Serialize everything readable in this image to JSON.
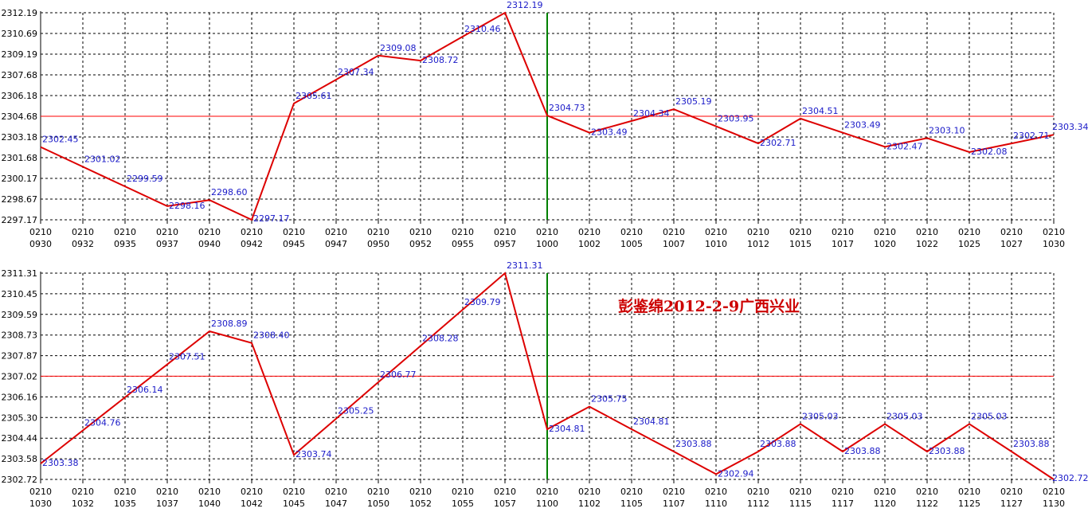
{
  "colors": {
    "line": "#dd0000",
    "reference": "#ff0000",
    "noon_marker": "#008000",
    "data_label": "#1a1ac8",
    "watermark": "#cc0000"
  },
  "watermark_text": "彭鉴绵2012-2-9广西兴业",
  "chart_data": [
    {
      "type": "line",
      "date_label": "0210",
      "categories": [
        "0930",
        "0932",
        "0935",
        "0937",
        "0940",
        "0942",
        "0945",
        "0947",
        "0950",
        "0952",
        "0955",
        "0957",
        "1000",
        "1002",
        "1005",
        "1007",
        "1010",
        "1012",
        "1015",
        "1017",
        "1020",
        "1022",
        "1025",
        "1027",
        "1030"
      ],
      "ytick_labels": [
        "2312.19",
        "2310.69",
        "2309.19",
        "2307.68",
        "2306.18",
        "2304.68",
        "2303.18",
        "2301.68",
        "2300.17",
        "2298.67",
        "2297.17"
      ],
      "ylim": [
        2297.17,
        2312.19
      ],
      "reference_line": 2304.68,
      "vertical_marker_category": "1000",
      "series": [
        {
          "values": [
            2302.45,
            2301.02,
            2299.59,
            2298.16,
            2298.6,
            2297.17,
            2305.61,
            2307.34,
            2309.08,
            2308.72,
            2310.46,
            2312.19,
            2304.73,
            2303.49,
            2304.34,
            2305.19,
            2303.95,
            2302.71,
            2304.51,
            2303.49,
            2302.47,
            2303.1,
            2302.08,
            2302.71,
            2303.34
          ],
          "labels": [
            "2302.45",
            "2301.02",
            "2299.59",
            "2298.16",
            "2298.60",
            "2297.17",
            "2305.61",
            "2307.34",
            "2309.08",
            "2308.72",
            "2310.46",
            "2312.19",
            "2304.73",
            "2303.49",
            "2304.34",
            "2305.19",
            "2303.95",
            "2302.71",
            "2304.51",
            "2303.49",
            "2302.47",
            "2303.10",
            "2302.08",
            "2302.71",
            "2303.34"
          ]
        }
      ]
    },
    {
      "type": "line",
      "date_label": "0210",
      "categories": [
        "1030",
        "1032",
        "1035",
        "1037",
        "1040",
        "1042",
        "1045",
        "1047",
        "1050",
        "1052",
        "1055",
        "1057",
        "1100",
        "1102",
        "1105",
        "1107",
        "1110",
        "1112",
        "1115",
        "1117",
        "1120",
        "1122",
        "1125",
        "1127",
        "1130"
      ],
      "ytick_labels": [
        "2311.31",
        "2310.45",
        "2309.59",
        "2308.73",
        "2307.87",
        "2307.02",
        "2306.16",
        "2305.30",
        "2304.44",
        "2303.58",
        "2302.72"
      ],
      "ylim": [
        2302.72,
        2311.31
      ],
      "reference_line": 2307.02,
      "vertical_marker_category": "1100",
      "series": [
        {
          "values": [
            2303.38,
            2304.76,
            2306.14,
            2307.51,
            2308.89,
            2308.4,
            2303.74,
            2305.25,
            2306.77,
            2308.28,
            2309.79,
            2311.31,
            2304.81,
            2305.75,
            2304.81,
            2303.88,
            2302.94,
            2303.88,
            2305.03,
            2303.88,
            2305.03,
            2303.88,
            2305.03,
            2303.88,
            2302.72
          ],
          "labels": [
            "2303.38",
            "2304.76",
            "2306.14",
            "2307.51",
            "2308.89",
            "2308.40",
            "2303.74",
            "2305.25",
            "2306.77",
            "2308.28",
            "2309.79",
            "2311.31",
            "2304.81",
            "2305.75",
            "2304.81",
            "2303.88",
            "2302.94",
            "2303.88",
            "2305.03",
            "2303.88",
            "2305.03",
            "2303.88",
            "2305.03",
            "2303.88",
            "2302.72"
          ]
        }
      ]
    }
  ]
}
